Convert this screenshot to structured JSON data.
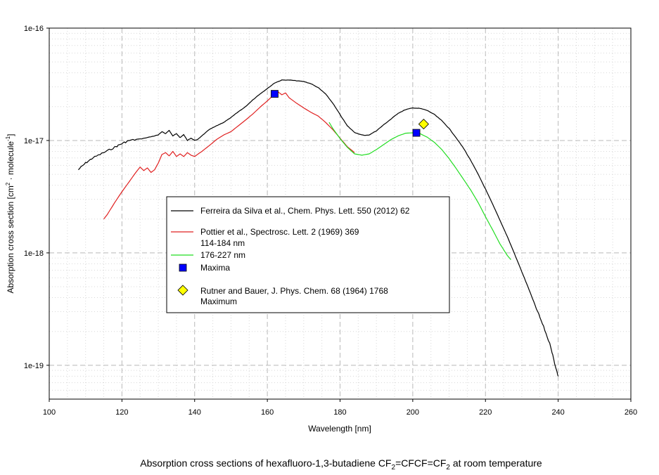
{
  "chart_data": {
    "type": "line",
    "title": "",
    "caption": {
      "text_1": "Absorption cross sections of hexafluoro-1,3-butadiene CF",
      "sub_1": "2",
      "text_2": "=CFCF=CF",
      "sub_2": "2",
      "text_3": " at room temperature"
    },
    "xlabel": "Wavelength [nm]",
    "ylabel": {
      "text_1": "Absorption cross section [cm",
      "sup_1": "2",
      "text_2": " · molecule",
      "sup_2": "-1",
      "text_3": "]"
    },
    "xlim": [
      100,
      260
    ],
    "ylim": [
      5e-20,
      1e-16
    ],
    "yscale": "log",
    "grid": true,
    "xticks": [
      100,
      120,
      140,
      160,
      180,
      200,
      220,
      240,
      260
    ],
    "xtick_labels": [
      "100",
      "120",
      "140",
      "160",
      "180",
      "200",
      "220",
      "240",
      "260"
    ],
    "yticks": [
      1e-19,
      1e-18,
      1e-17,
      1e-16
    ],
    "ytick_labels": [
      "1e-19",
      "1e-18",
      "1e-17",
      "1e-16"
    ],
    "legend_position": "center-left",
    "legend": [
      {
        "kind": "line",
        "color": "#000000",
        "label": "Ferreira da Silva et al., Chem. Phys. Lett. 550 (2012) 62"
      },
      {
        "kind": "line",
        "color": "#e02020",
        "label": "Pottier et al., Spectrosc. Lett. 2 (1969) 369"
      },
      {
        "kind": "text",
        "label": "114-184 nm"
      },
      {
        "kind": "line",
        "color": "#22dd22",
        "label": "176-227 nm"
      },
      {
        "kind": "square",
        "color": "#0000ff",
        "label": "Maxima"
      },
      {
        "kind": "diamond",
        "color": "#ffff00",
        "label": "Rutner and Bauer, J. Phys. Chem. 68 (1964) 1768"
      },
      {
        "kind": "text",
        "label": "Maximum"
      }
    ],
    "series": [
      {
        "color": "#000000",
        "noisy": true,
        "x": [
          108,
          110,
          112,
          115,
          118,
          120,
          122,
          125,
          128,
          130,
          131,
          132,
          133,
          134,
          135,
          136,
          137,
          138,
          139,
          140,
          141,
          142,
          144,
          146,
          148,
          150,
          152,
          154,
          156,
          158,
          160,
          162,
          164,
          166,
          168,
          170,
          172,
          174,
          176,
          178,
          180,
          182,
          184,
          186,
          187,
          188,
          190,
          192,
          194,
          196,
          198,
          200,
          202,
          204,
          206,
          208,
          210,
          212,
          214,
          216,
          218,
          220,
          222,
          224,
          226,
          228,
          230,
          232,
          234,
          236,
          238,
          239,
          240
        ],
        "y": [
          5.5e-18,
          6.3e-18,
          7e-18,
          7.8e-18,
          8.7e-18,
          9.4e-18,
          1e-17,
          1.03e-17,
          1.08e-17,
          1.12e-17,
          1.2e-17,
          1.15e-17,
          1.23e-17,
          1.1e-17,
          1.15e-17,
          1.06e-17,
          1.13e-17,
          1e-17,
          1.05e-17,
          1e-17,
          1.03e-17,
          1.1e-17,
          1.25e-17,
          1.35e-17,
          1.45e-17,
          1.6e-17,
          1.8e-17,
          2e-17,
          2.3e-17,
          2.6e-17,
          2.9e-17,
          3.25e-17,
          3.45e-17,
          3.45e-17,
          3.4e-17,
          3.35e-17,
          3.2e-17,
          2.95e-17,
          2.6e-17,
          2.15e-17,
          1.7e-17,
          1.35e-17,
          1.18e-17,
          1.12e-17,
          1.11e-17,
          1.12e-17,
          1.22e-17,
          1.38e-17,
          1.55e-17,
          1.75e-17,
          1.88e-17,
          1.95e-17,
          1.93e-17,
          1.85e-17,
          1.7e-17,
          1.5e-17,
          1.28e-17,
          1.05e-17,
          8.5e-18,
          6.6e-18,
          5e-18,
          3.7e-18,
          2.7e-18,
          1.95e-18,
          1.4e-18,
          9.8e-19,
          6.8e-19,
          4.7e-19,
          3.2e-19,
          2.2e-19,
          1.45e-19,
          1.05e-19,
          8e-20
        ]
      },
      {
        "color": "#e02020",
        "noisy": false,
        "x": [
          115,
          116,
          118,
          120,
          122,
          124,
          125,
          126,
          127,
          128,
          129,
          130,
          131,
          132,
          133,
          134,
          135,
          136,
          137,
          138,
          139,
          140,
          141,
          142,
          144,
          146,
          148,
          150,
          152,
          154,
          156,
          158,
          160,
          162,
          163,
          164,
          165,
          166,
          168,
          170,
          172,
          174,
          176,
          178,
          180,
          182,
          184
        ],
        "y": [
          2e-18,
          2.2e-18,
          2.8e-18,
          3.5e-18,
          4.3e-18,
          5.3e-18,
          5.8e-18,
          5.4e-18,
          5.7e-18,
          5.2e-18,
          5.5e-18,
          6.3e-18,
          7.5e-18,
          7.8e-18,
          7.3e-18,
          8e-18,
          7.2e-18,
          7.6e-18,
          7.2e-18,
          7.8e-18,
          7.4e-18,
          7.2e-18,
          7.6e-18,
          8e-18,
          9e-18,
          1.02e-17,
          1.12e-17,
          1.2e-17,
          1.35e-17,
          1.52e-17,
          1.72e-17,
          1.98e-17,
          2.25e-17,
          2.6e-17,
          2.7e-17,
          2.55e-17,
          2.65e-17,
          2.4e-17,
          2.15e-17,
          1.95e-17,
          1.78e-17,
          1.65e-17,
          1.45e-17,
          1.25e-17,
          1.05e-17,
          8.8e-18,
          7.8e-18
        ]
      },
      {
        "color": "#22dd22",
        "noisy": false,
        "x": [
          177,
          178,
          180,
          182,
          184,
          186,
          188,
          190,
          192,
          194,
          196,
          198,
          200,
          202,
          204,
          206,
          208,
          210,
          212,
          214,
          216,
          218,
          220,
          222,
          224,
          226,
          227
        ],
        "y": [
          1.45e-17,
          1.28e-17,
          1.04e-17,
          8.7e-18,
          7.6e-18,
          7.4e-18,
          7.6e-18,
          8.3e-18,
          9.2e-18,
          1.02e-17,
          1.1e-17,
          1.16e-17,
          1.17e-17,
          1.15e-17,
          1.07e-17,
          9.6e-18,
          8.3e-18,
          6.9e-18,
          5.6e-18,
          4.5e-18,
          3.6e-18,
          2.8e-18,
          2.1e-18,
          1.6e-18,
          1.2e-18,
          9.5e-19,
          8.7e-19
        ]
      }
    ],
    "markers": [
      {
        "kind": "square",
        "color": "#0000ff",
        "x": 162,
        "y": 2.6e-17
      },
      {
        "kind": "square",
        "color": "#0000ff",
        "x": 201,
        "y": 1.17e-17
      },
      {
        "kind": "diamond",
        "color": "#ffff00",
        "x": 203,
        "y": 1.4e-17
      }
    ]
  }
}
